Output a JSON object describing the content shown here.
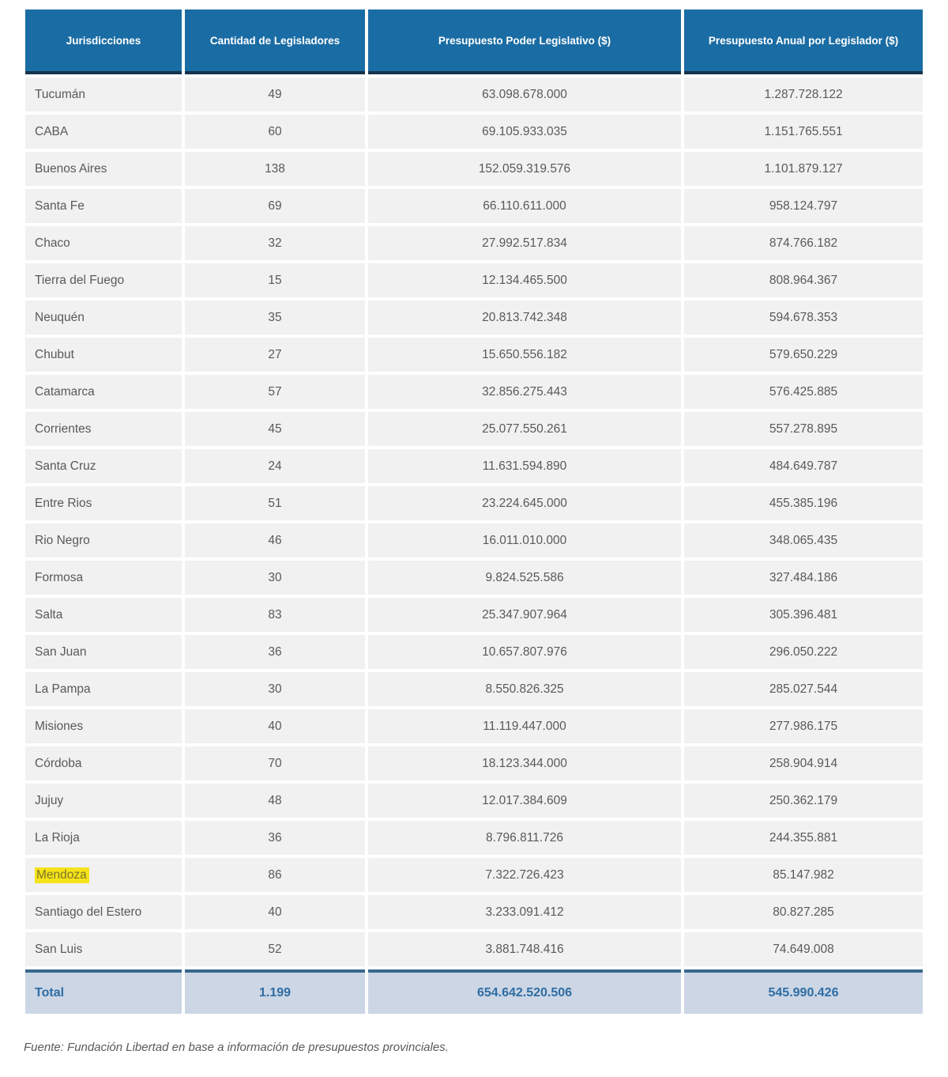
{
  "table": {
    "headers": [
      "Jurisdicciones",
      "Cantidad de Legisladores",
      "Presupuesto Poder Legislativo ($)",
      "Presupuesto Anual por Legislador ($)"
    ],
    "rows": [
      [
        "Tucumán",
        "49",
        "63.098.678.000",
        "1.287.728.122"
      ],
      [
        "CABA",
        "60",
        "69.105.933.035",
        "1.151.765.551"
      ],
      [
        "Buenos Aires",
        "138",
        "152.059.319.576",
        "1.101.879.127"
      ],
      [
        "Santa Fe",
        "69",
        "66.110.611.000",
        "958.124.797"
      ],
      [
        "Chaco",
        "32",
        "27.992.517.834",
        "874.766.182"
      ],
      [
        "Tierra del Fuego",
        "15",
        "12.134.465.500",
        "808.964.367"
      ],
      [
        "Neuquén",
        "35",
        "20.813.742.348",
        "594.678.353"
      ],
      [
        "Chubut",
        "27",
        "15.650.556.182",
        "579.650.229"
      ],
      [
        "Catamarca",
        "57",
        "32.856.275.443",
        "576.425.885"
      ],
      [
        "Corrientes",
        "45",
        "25.077.550.261",
        "557.278.895"
      ],
      [
        "Santa Cruz",
        "24",
        "11.631.594.890",
        "484.649.787"
      ],
      [
        "Entre Rios",
        "51",
        "23.224.645.000",
        "455.385.196"
      ],
      [
        "Rio Negro",
        "46",
        "16.011.010.000",
        "348.065.435"
      ],
      [
        "Formosa",
        "30",
        "9.824.525.586",
        "327.484.186"
      ],
      [
        "Salta",
        "83",
        "25.347.907.964",
        "305.396.481"
      ],
      [
        "San Juan",
        "36",
        "10.657.807.976",
        "296.050.222"
      ],
      [
        "La Pampa",
        "30",
        "8.550.826.325",
        "285.027.544"
      ],
      [
        "Misiones",
        "40",
        "11.119.447.000",
        "277.986.175"
      ],
      [
        "Córdoba",
        "70",
        "18.123.344.000",
        "258.904.914"
      ],
      [
        "Jujuy",
        "48",
        "12.017.384.609",
        "250.362.179"
      ],
      [
        "La Rioja",
        "36",
        "8.796.811.726",
        "244.355.881"
      ],
      [
        "Mendoza",
        "86",
        "7.322.726.423",
        "85.147.982"
      ],
      [
        "Santiago del Estero",
        "40",
        "3.233.091.412",
        "80.827.285"
      ],
      [
        "San Luis",
        "52",
        "3.881.748.416",
        "74.649.008"
      ]
    ],
    "highlight_row_index": 21,
    "highlighted_jurisdiction": "Mendoza",
    "total": [
      "Total",
      "1.199",
      "654.642.520.506",
      "545.990.426"
    ]
  },
  "footer": {
    "source": "Fuente: Fundación Libertad en base a información de presupuestos provinciales."
  },
  "colors": {
    "header_bg": "#1a6ca4",
    "header_text": "#ffffff",
    "header_border": "#16334d",
    "row_bg": "#f1f1f1",
    "text": "#595959",
    "total_bg": "#ccd6e5",
    "total_text": "#2e6da4",
    "total_border": "#38688f",
    "highlight_bg": "#f5e31a",
    "highlight_text": "#7c7526"
  },
  "chart_data": {
    "type": "table",
    "title": "",
    "columns": [
      "Jurisdicciones",
      "Cantidad de Legisladores",
      "Presupuesto Poder Legislativo ($)",
      "Presupuesto Anual por Legislador ($)"
    ],
    "rows": [
      [
        "Tucumán",
        49,
        63098678000,
        1287728122
      ],
      [
        "CABA",
        60,
        69105933035,
        1151765551
      ],
      [
        "Buenos Aires",
        138,
        152059319576,
        1101879127
      ],
      [
        "Santa Fe",
        69,
        66110611000,
        958124797
      ],
      [
        "Chaco",
        32,
        27992517834,
        874766182
      ],
      [
        "Tierra del Fuego",
        15,
        12134465500,
        808964367
      ],
      [
        "Neuquén",
        35,
        20813742348,
        594678353
      ],
      [
        "Chubut",
        27,
        15650556182,
        579650229
      ],
      [
        "Catamarca",
        57,
        32856275443,
        576425885
      ],
      [
        "Corrientes",
        45,
        25077550261,
        557278895
      ],
      [
        "Santa Cruz",
        24,
        11631594890,
        484649787
      ],
      [
        "Entre Rios",
        51,
        23224645000,
        455385196
      ],
      [
        "Rio Negro",
        46,
        16011010000,
        348065435
      ],
      [
        "Formosa",
        30,
        9824525586,
        327484186
      ],
      [
        "Salta",
        83,
        25347907964,
        305396481
      ],
      [
        "San Juan",
        36,
        10657807976,
        296050222
      ],
      [
        "La Pampa",
        30,
        8550826325,
        285027544
      ],
      [
        "Misiones",
        40,
        11119447000,
        277986175
      ],
      [
        "Córdoba",
        70,
        18123344000,
        258904914
      ],
      [
        "Jujuy",
        48,
        12017384609,
        250362179
      ],
      [
        "La Rioja",
        36,
        8796811726,
        244355881
      ],
      [
        "Mendoza",
        86,
        7322726423,
        85147982
      ],
      [
        "Santiago del Estero",
        40,
        3233091412,
        80827285
      ],
      [
        "San Luis",
        52,
        3881748416,
        74649008
      ]
    ],
    "total_row": [
      "Total",
      1199,
      654642520506,
      545990426
    ],
    "highlighted_row": "Mendoza",
    "source": "Fuente: Fundación Libertad en base a información de presupuestos provinciales."
  }
}
